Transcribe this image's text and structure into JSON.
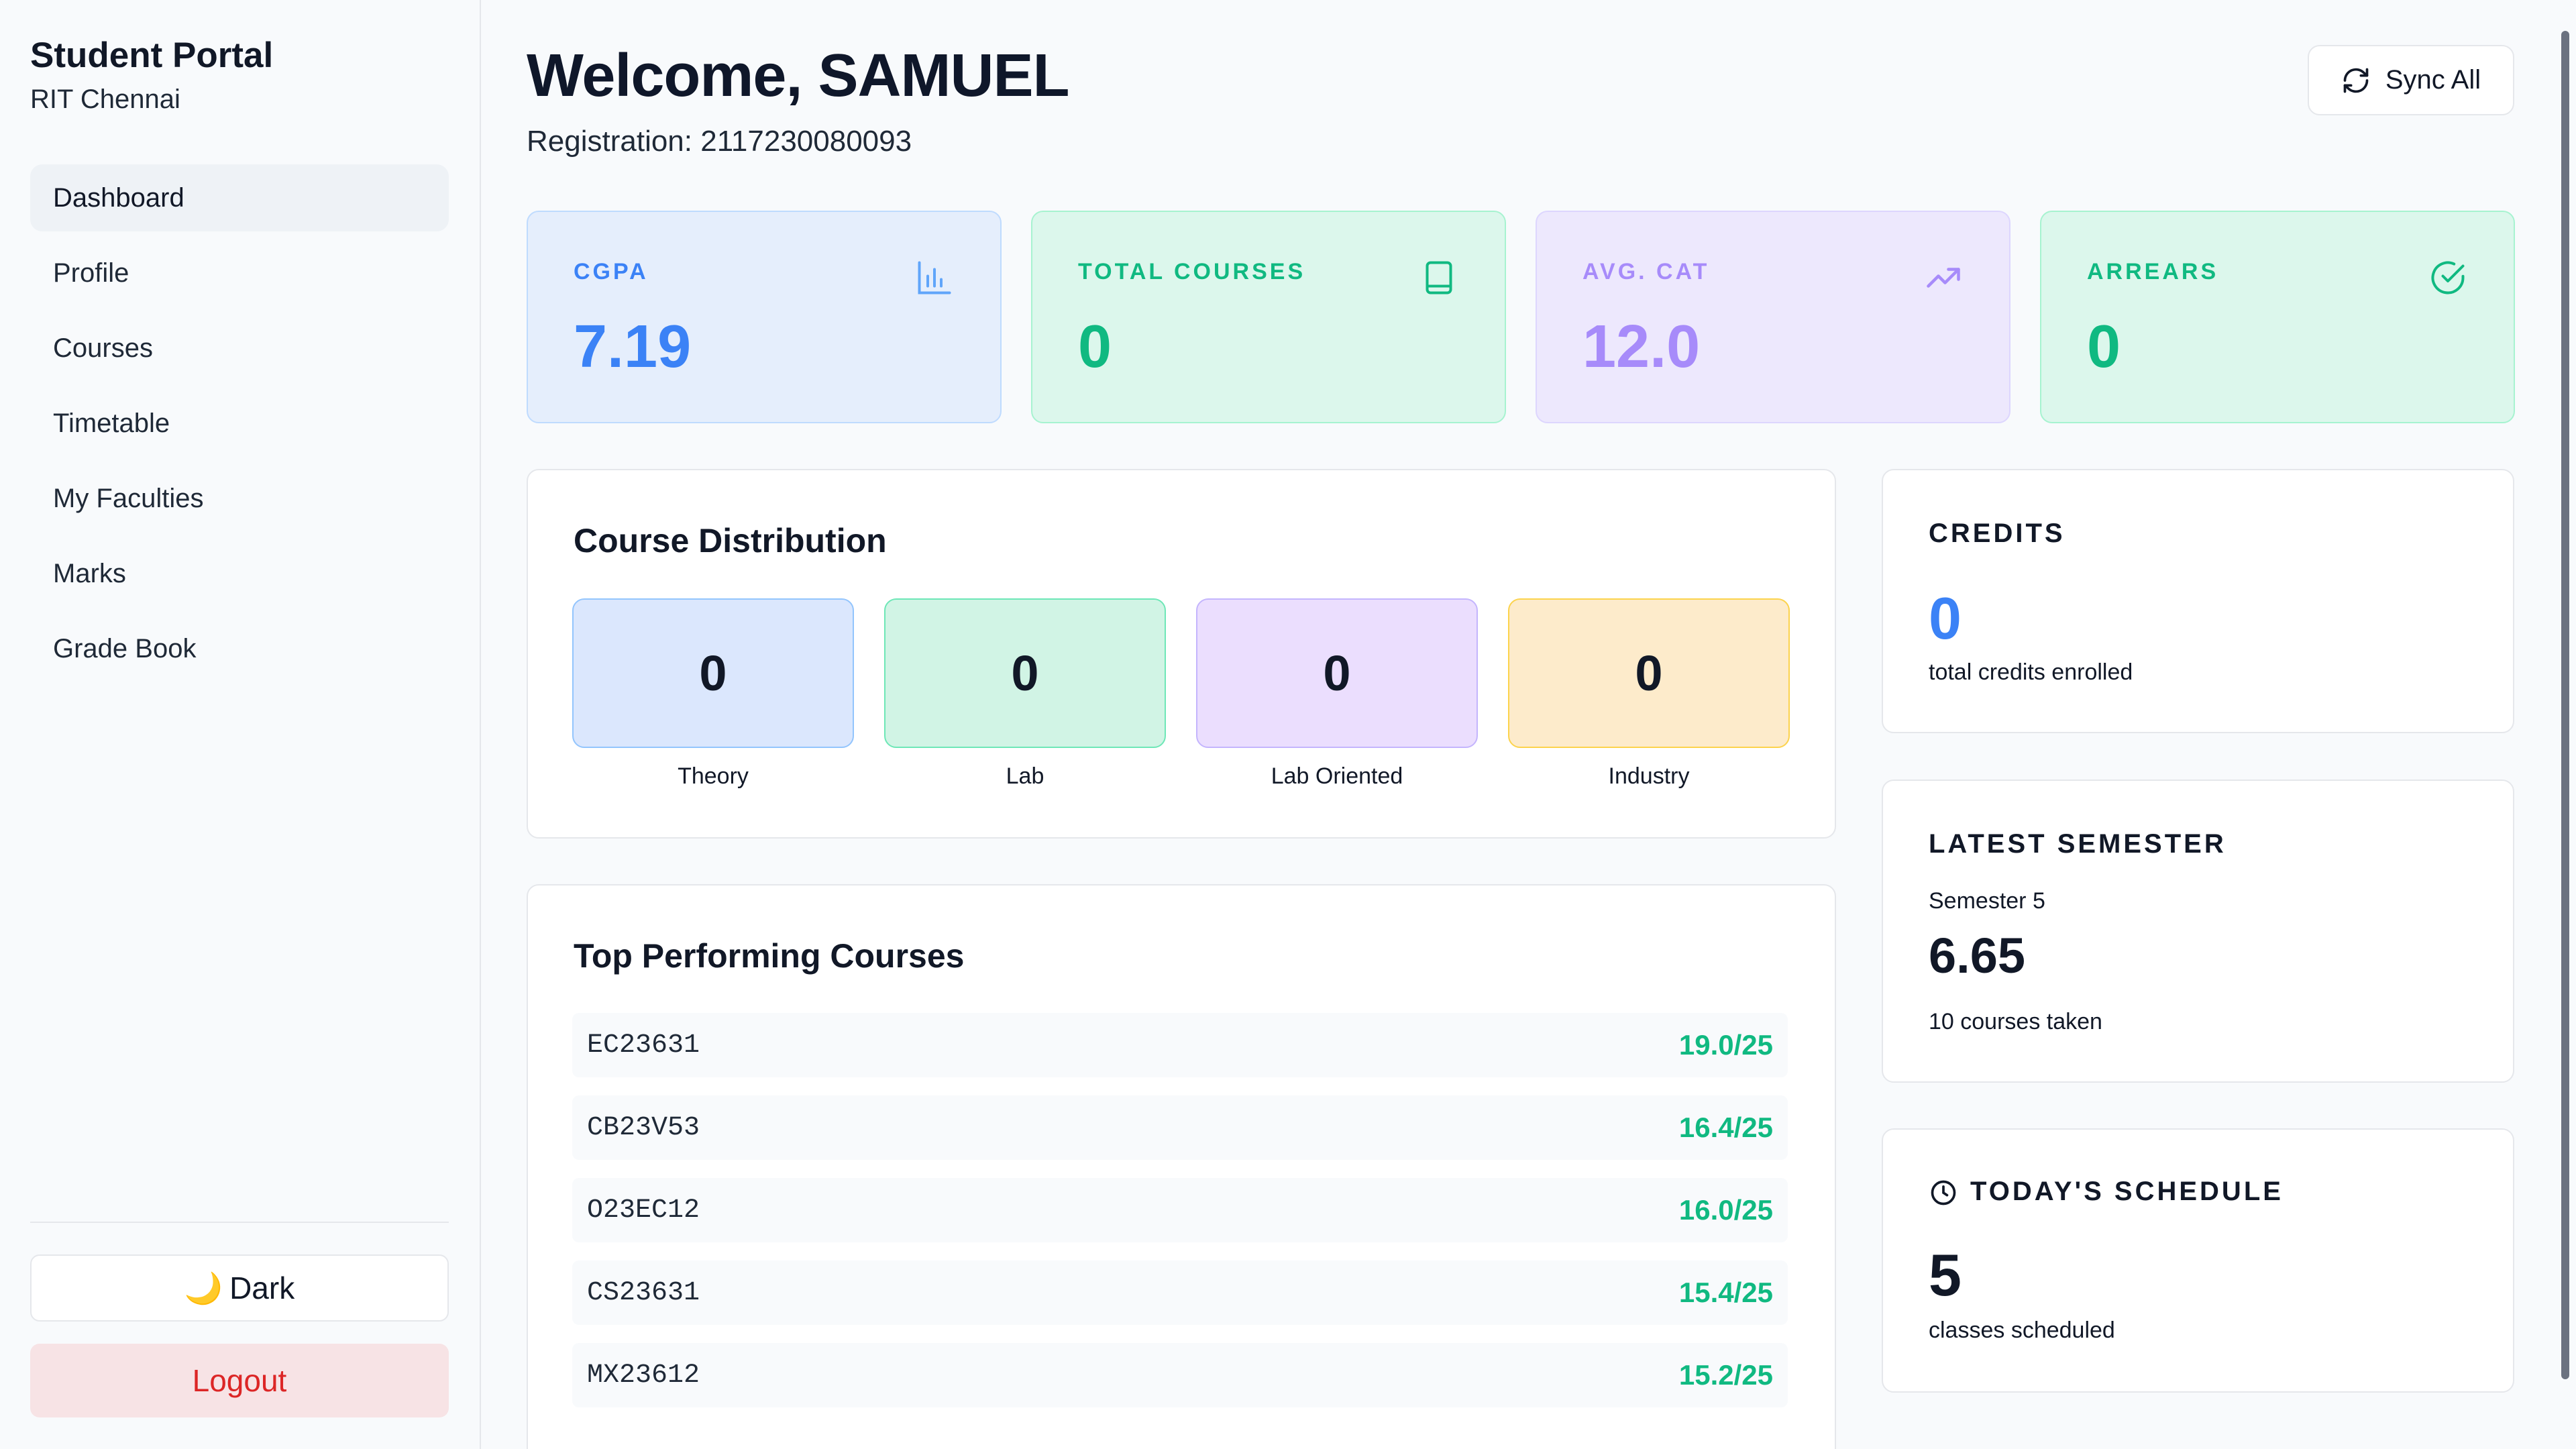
{
  "sidebar": {
    "brand_title": "Student Portal",
    "brand_sub": "RIT Chennai",
    "items": [
      {
        "label": "Dashboard"
      },
      {
        "label": "Profile"
      },
      {
        "label": "Courses"
      },
      {
        "label": "Timetable"
      },
      {
        "label": "My Faculties"
      },
      {
        "label": "Marks"
      },
      {
        "label": "Grade Book"
      }
    ],
    "theme_label": "Dark",
    "theme_emoji": "🌙",
    "logout_label": "Logout"
  },
  "header": {
    "welcome": "Welcome, SAMUEL",
    "registration": "Registration: 2117230080093",
    "sync_label": "Sync All"
  },
  "stats": [
    {
      "label": "CGPA",
      "value": "7.19",
      "icon": "bar-chart-icon",
      "color": "#3b82f6"
    },
    {
      "label": "TOTAL COURSES",
      "value": "0",
      "icon": "book-icon",
      "color": "#10b981"
    },
    {
      "label": "AVG. CAT",
      "value": "12.0",
      "icon": "trending-up-icon",
      "color": "#a78bfa"
    },
    {
      "label": "ARREARS",
      "value": "0",
      "icon": "check-circle-icon",
      "color": "#10b981"
    }
  ],
  "distribution": {
    "title": "Course Distribution",
    "items": [
      {
        "label": "Theory",
        "value": "0",
        "color": "#dbe7fd"
      },
      {
        "label": "Lab",
        "value": "0",
        "color": "#d1f4e5"
      },
      {
        "label": "Lab Oriented",
        "value": "0",
        "color": "#ebdefe"
      },
      {
        "label": "Industry",
        "value": "0",
        "color": "#fdebcb"
      }
    ]
  },
  "top_courses": {
    "title": "Top Performing Courses",
    "rows": [
      {
        "code": "EC23631",
        "score": "19.0/25"
      },
      {
        "code": "CB23V53",
        "score": "16.4/25"
      },
      {
        "code": "O23EC12",
        "score": "16.0/25"
      },
      {
        "code": "CS23631",
        "score": "15.4/25"
      },
      {
        "code": "MX23612",
        "score": "15.2/25"
      }
    ]
  },
  "credits": {
    "label": "CREDITS",
    "value": "0",
    "caption": "total credits enrolled"
  },
  "latest_semester": {
    "label": "LATEST SEMESTER",
    "semester": "Semester 5",
    "gpa": "6.65",
    "caption": "10 courses taken"
  },
  "schedule": {
    "label": "TODAY'S SCHEDULE",
    "value": "5",
    "caption": "classes scheduled"
  }
}
